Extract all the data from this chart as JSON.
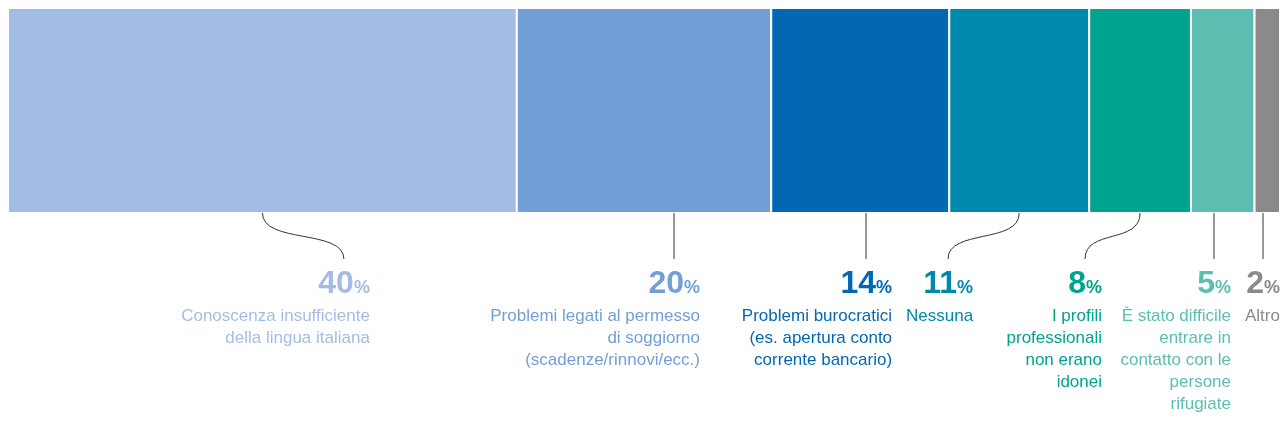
{
  "chart_data": {
    "type": "bar",
    "stacked": true,
    "orientation": "horizontal",
    "categories": [
      null
    ],
    "xlim": [
      0,
      100
    ],
    "tick_labels": false,
    "series": [
      {
        "name": "Conoscenza insufficiente della lingua italiana",
        "color": "#a4bce5",
        "values": [
          40
        ],
        "value_labels": [
          "40%"
        ]
      },
      {
        "name": "Problemi legati al permesso di soggiorno (scadenze/rinnovi/ecc.)",
        "color": "#729fd6",
        "values": [
          20
        ],
        "value_labels": [
          "20%"
        ]
      },
      {
        "name": "Problemi burocratici (es. apertura conto corrente bancario)",
        "color": "#0467b3",
        "values": [
          14
        ],
        "value_labels": [
          "14%"
        ]
      },
      {
        "name": "Nessuna",
        "color": "#0089ad",
        "values": [
          11
        ],
        "value_labels": [
          "11%"
        ]
      },
      {
        "name": "I profili professionali non erano idonei",
        "color": "#00a38f",
        "values": [
          8
        ],
        "value_labels": [
          "8%"
        ]
      },
      {
        "name": "È stato difficile entrare in contatto con le persone rifugiate",
        "color": "#5bbeb0",
        "values": [
          5
        ],
        "value_labels": [
          "5%"
        ]
      },
      {
        "name": "Altro",
        "color": "#8a8a8a",
        "values": [
          2
        ],
        "value_labels": [
          "2%"
        ]
      }
    ]
  }
}
